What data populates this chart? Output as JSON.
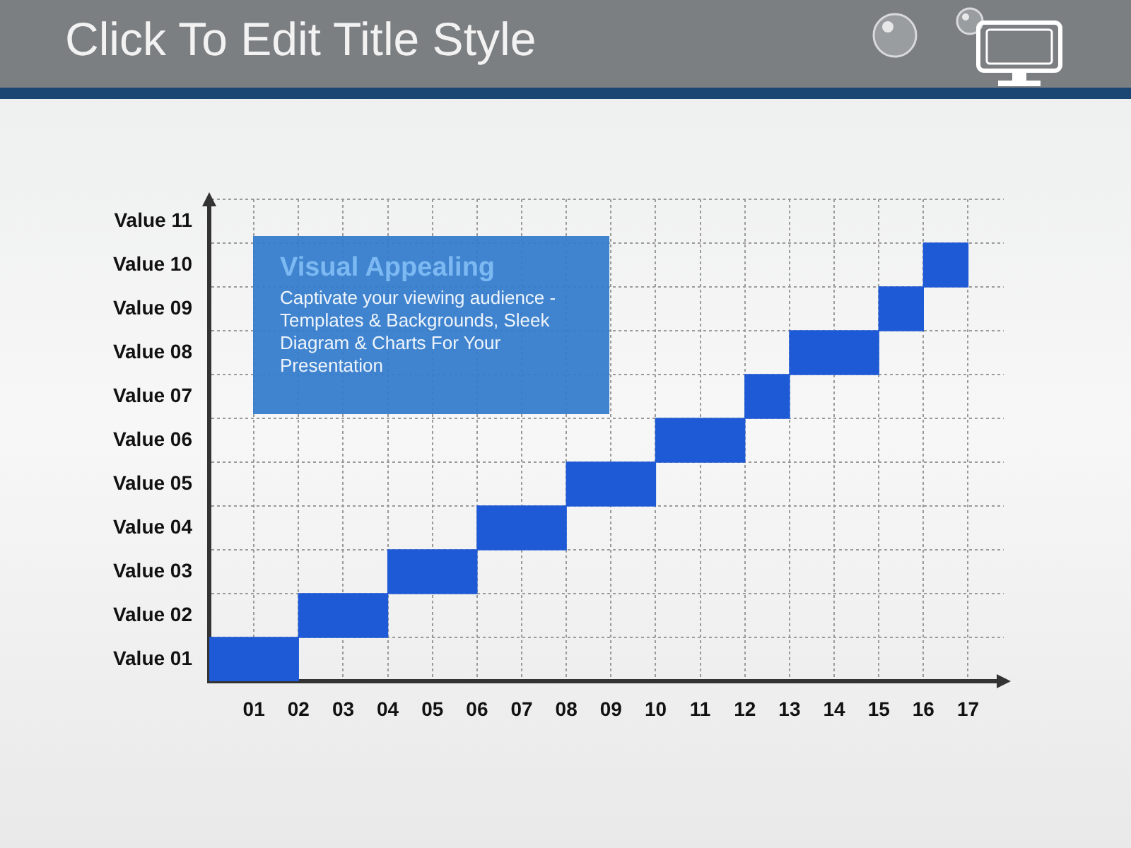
{
  "chart_data": {
    "type": "bar",
    "orientation": "horizontal",
    "title": "Click To Edit Title Style",
    "annotations": [
      "Visual Appealing",
      "Captivate your viewing audience - Templates & Backgrounds, Sleek Diagram & Charts For Your Presentation"
    ],
    "categories": [
      "Value 11",
      "Value 10",
      "Value 09",
      "Value 08",
      "Value 07",
      "Value 06",
      "Value 05",
      "Value 04",
      "Value 03",
      "Value 02",
      "Value 01"
    ],
    "values": [
      null,
      1,
      1,
      2,
      1,
      2,
      2,
      2,
      2,
      2,
      2
    ],
    "base": [
      null,
      16,
      15,
      13,
      12,
      10,
      8,
      6,
      4,
      2,
      0
    ],
    "color": "#1f5ad6",
    "xlim": [
      0,
      17.8
    ],
    "xticks": [
      {
        "value": 1,
        "label": "01"
      },
      {
        "value": 2,
        "label": "02"
      },
      {
        "value": 3,
        "label": "03"
      },
      {
        "value": 4,
        "label": "04"
      },
      {
        "value": 5,
        "label": "05"
      },
      {
        "value": 6,
        "label": "06"
      },
      {
        "value": 7,
        "label": "07"
      },
      {
        "value": 8,
        "label": "08"
      },
      {
        "value": 9,
        "label": "09"
      },
      {
        "value": 10,
        "label": "10"
      },
      {
        "value": 11,
        "label": "11"
      },
      {
        "value": 12,
        "label": "12"
      },
      {
        "value": 13,
        "label": "13"
      },
      {
        "value": 14,
        "label": "14"
      },
      {
        "value": 15,
        "label": "15"
      },
      {
        "value": 16,
        "label": "16"
      },
      {
        "value": 17,
        "label": "17"
      }
    ],
    "grid": true
  }
}
